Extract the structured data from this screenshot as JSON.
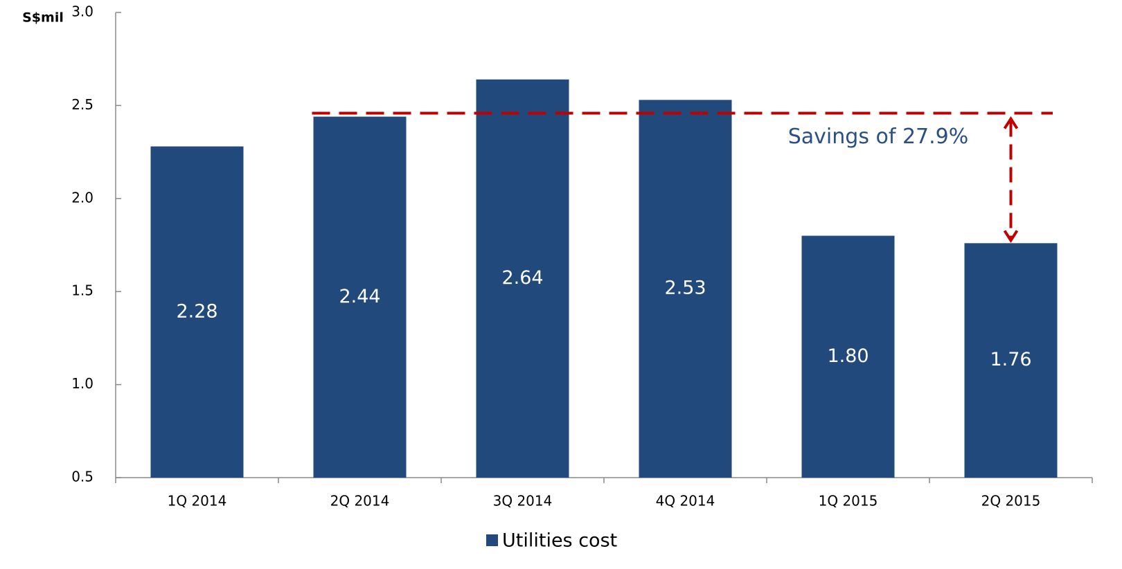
{
  "chart_data": {
    "type": "bar",
    "y_axis_label": "S$mil",
    "categories": [
      "1Q 2014",
      "2Q 2014",
      "3Q 2014",
      "4Q 2014",
      "1Q 2015",
      "2Q 2015"
    ],
    "series": [
      {
        "name": "Utilities cost",
        "color": "#21497c",
        "values": [
          2.28,
          2.44,
          2.64,
          2.53,
          1.8,
          1.76
        ],
        "value_labels": [
          "2.28",
          "2.44",
          "2.64",
          "2.53",
          "1.80",
          "1.76"
        ]
      }
    ],
    "ylim": [
      0.5,
      3.0
    ],
    "yticks": [
      0.5,
      {
        "value": 1,
        "label": "1.0"
      },
      1.5,
      {
        "value": 2,
        "label": "2.0"
      },
      2.5,
      {
        "value": 3,
        "label": "3.0"
      }
    ],
    "annotation": "Savings of 27.9%",
    "annotation_color": "#c00000",
    "legend": "bottom"
  }
}
